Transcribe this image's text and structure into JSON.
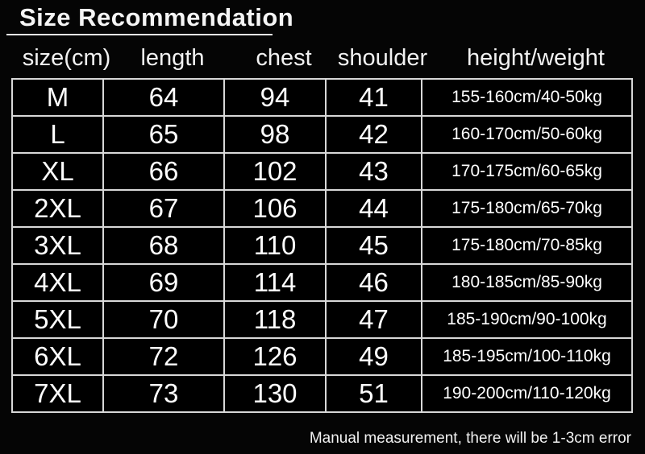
{
  "title": "Size Recommendation",
  "footer": {
    "note": "Manual measurement, there will be 1-3cm error"
  },
  "colors": {
    "background": "#050505",
    "cell_background": "#000000",
    "text": "#ffffff",
    "border": "#d8d8d8"
  },
  "chart_data": {
    "type": "table",
    "title": "Size Recommendation",
    "columns": [
      "size(cm)",
      "length",
      "chest",
      "shoulder",
      "height/weight"
    ],
    "rows": [
      [
        "M",
        "64",
        "94",
        "41",
        "155-160cm/40-50kg"
      ],
      [
        "L",
        "65",
        "98",
        "42",
        "160-170cm/50-60kg"
      ],
      [
        "XL",
        "66",
        "102",
        "43",
        "170-175cm/60-65kg"
      ],
      [
        "2XL",
        "67",
        "106",
        "44",
        "175-180cm/65-70kg"
      ],
      [
        "3XL",
        "68",
        "110",
        "45",
        "175-180cm/70-85kg"
      ],
      [
        "4XL",
        "69",
        "114",
        "46",
        "180-185cm/85-90kg"
      ],
      [
        "5XL",
        "70",
        "118",
        "47",
        "185-190cm/90-100kg"
      ],
      [
        "6XL",
        "72",
        "126",
        "49",
        "185-195cm/100-110kg"
      ],
      [
        "7XL",
        "73",
        "130",
        "51",
        "190-200cm/110-120kg"
      ]
    ],
    "note": "Manual measurement, there will be 1-3cm error",
    "layout": {
      "grid": true,
      "legend": "none"
    }
  }
}
